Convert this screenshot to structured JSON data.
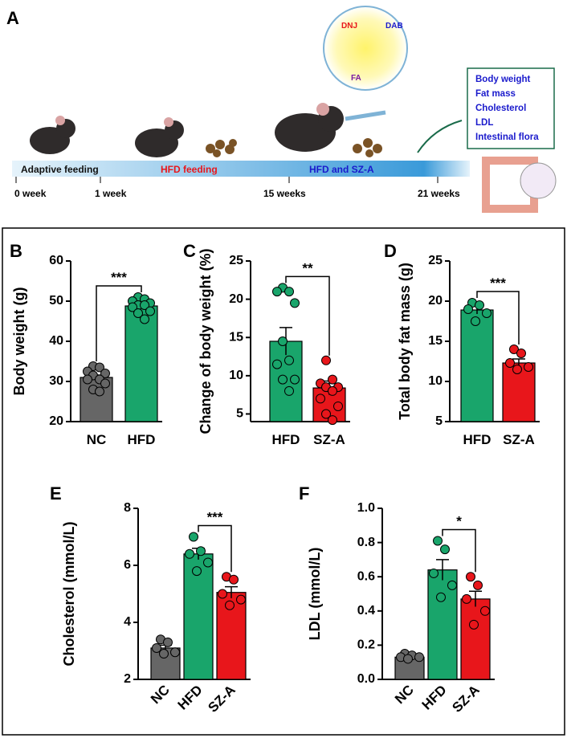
{
  "panel_a": {
    "letter": "A",
    "phases": [
      "Adaptive feeding",
      "HFD feeding",
      "HFD and SZ-A"
    ],
    "times": [
      "0 week",
      "1 week",
      "15 weeks",
      "21 weeks"
    ],
    "molecules": [
      "DNJ",
      "DAB",
      "FA"
    ],
    "outcomes": [
      "Body weight",
      "Fat mass",
      "Cholesterol",
      "LDL",
      "Intestinal flora"
    ]
  },
  "chart_data": [
    {
      "type": "bar",
      "letter": "B",
      "ylabel": "Body weight (g)",
      "categories": [
        "NC",
        "HFD"
      ],
      "colors": [
        "#666666",
        "#19a56b"
      ],
      "values": [
        31,
        48.8
      ],
      "errors": [
        0.6,
        0.6
      ],
      "points": [
        [
          33.8,
          33.5,
          32.5,
          32,
          31.5,
          30.5,
          30.5,
          29.5,
          28,
          27.5
        ],
        [
          51,
          50.5,
          50,
          49.5,
          49,
          49,
          48.5,
          47.5,
          47,
          45.5
        ]
      ],
      "significance": "***",
      "ylim": [
        20,
        60
      ],
      "yticks": [
        20,
        30,
        40,
        50,
        60
      ]
    },
    {
      "type": "bar",
      "letter": "C",
      "ylabel": "Change of body weight (%)",
      "categories": [
        "HFD",
        "SZ-A"
      ],
      "colors": [
        "#19a56b",
        "#e8161b"
      ],
      "values": [
        14.5,
        8.4
      ],
      "errors": [
        1.8,
        0.9
      ],
      "points": [
        [
          21.5,
          21,
          21,
          19.5,
          14.5,
          12,
          11.5,
          9.5,
          9.5,
          8
        ],
        [
          12,
          9.5,
          9,
          8.5,
          8.5,
          8,
          7,
          6,
          5,
          4.2
        ]
      ],
      "significance": "**",
      "ylim": [
        4,
        25
      ],
      "yticks": [
        5,
        10,
        15,
        20,
        25
      ]
    },
    {
      "type": "bar",
      "letter": "D",
      "ylabel": "Total body fat mass (g)",
      "categories": [
        "HFD",
        "SZ-A"
      ],
      "colors": [
        "#19a56b",
        "#e8161b"
      ],
      "values": [
        18.9,
        12.3
      ],
      "errors": [
        0.5,
        0.5
      ],
      "points": [
        [
          19.8,
          19.5,
          19,
          18.5,
          17.5
        ],
        [
          14,
          13.5,
          12.3,
          11.8,
          11.5
        ]
      ],
      "significance": "***",
      "ylim": [
        5,
        25
      ],
      "yticks": [
        5,
        10,
        15,
        20,
        25
      ]
    },
    {
      "type": "bar",
      "letter": "E",
      "ylabel": "Cholesterol (mmol/L)",
      "categories": [
        "NC",
        "HFD",
        "SZ-A"
      ],
      "colors": [
        "#666666",
        "#19a56b",
        "#e8161b"
      ],
      "values": [
        3.1,
        6.4,
        5.05
      ],
      "errors": [
        0.1,
        0.2,
        0.2
      ],
      "points": [
        [
          3.4,
          3.3,
          3.1,
          2.95,
          2.9
        ],
        [
          7,
          6.5,
          6.4,
          6.1,
          5.8
        ],
        [
          5.6,
          5.5,
          5,
          4.8,
          4.6
        ]
      ],
      "significance": "***",
      "ylim": [
        2,
        8
      ],
      "yticks": [
        2,
        4,
        6,
        8
      ]
    },
    {
      "type": "bar",
      "letter": "F",
      "ylabel": "LDL (mmol/L)",
      "categories": [
        "NC",
        "HFD",
        "SZ-A"
      ],
      "colors": [
        "#666666",
        "#19a56b",
        "#e8161b"
      ],
      "values": [
        0.13,
        0.64,
        0.47
      ],
      "errors": [
        0.01,
        0.06,
        0.045
      ],
      "points": [
        [
          0.15,
          0.14,
          0.13,
          0.13,
          0.12
        ],
        [
          0.81,
          0.76,
          0.62,
          0.55,
          0.48
        ],
        [
          0.6,
          0.55,
          0.47,
          0.4,
          0.32
        ]
      ],
      "significance": "*",
      "ylim": [
        0,
        1
      ],
      "yticks": [
        {
          "value": 0,
          "label": "0.0"
        },
        0.2,
        0.4,
        0.6,
        0.8,
        {
          "value": 1,
          "label": "1.0"
        }
      ]
    }
  ]
}
